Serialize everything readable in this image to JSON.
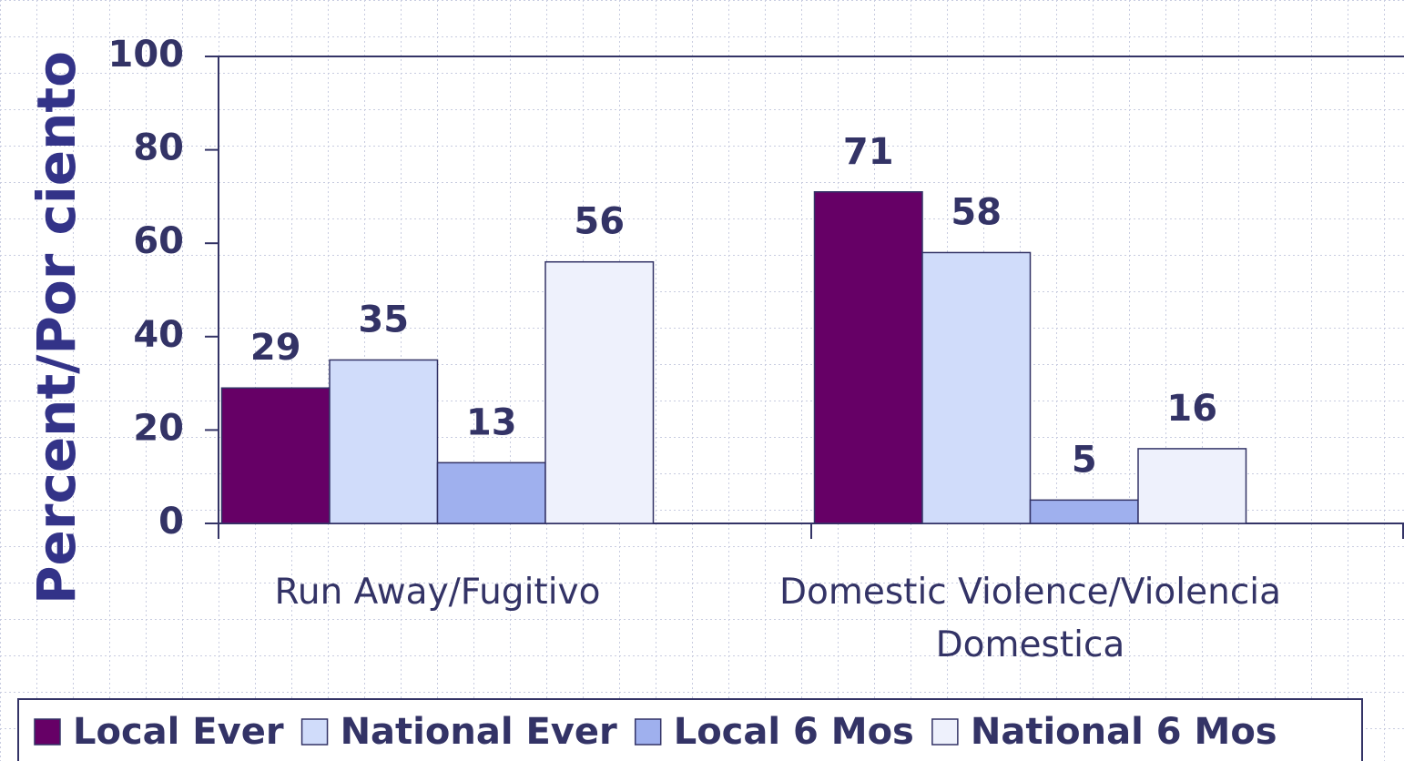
{
  "chart_data": {
    "type": "bar",
    "y_label": "Percent/Por ciento",
    "categories": [
      "Run Away/Fugitivo",
      "Domestic Violence/Violencia Domestica"
    ],
    "series": [
      {
        "name": "Local Ever",
        "color": "#660066",
        "values": [
          29,
          71
        ]
      },
      {
        "name": "National Ever",
        "color": "#d0dcfa",
        "values": [
          35,
          58
        ]
      },
      {
        "name": "Local 6 Mos",
        "color": "#9fb0ee",
        "values": [
          13,
          5
        ]
      },
      {
        "name": "National 6 Mos",
        "color": "#eef1fc",
        "values": [
          56,
          16
        ]
      }
    ],
    "ylim": [
      0,
      100
    ],
    "yticks": [
      0,
      20,
      40,
      60,
      80,
      100
    ],
    "grid": false,
    "legend": "bottom"
  }
}
